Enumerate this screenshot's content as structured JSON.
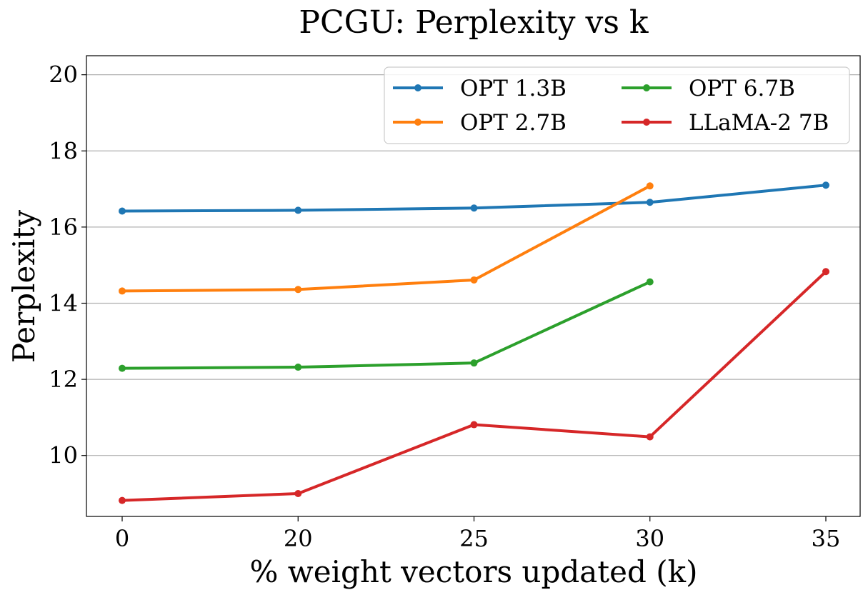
{
  "chart_data": {
    "type": "line",
    "title": "PCGU: Perplexity vs k",
    "xlabel": "% weight vectors updated (k)",
    "ylabel": "Perplexity",
    "categories": [
      "0",
      "20",
      "25",
      "30",
      "35"
    ],
    "ylim": [
      8.4,
      20.5
    ],
    "yticks": [
      10,
      12,
      14,
      16,
      18,
      20
    ],
    "grid": "horizontal",
    "legend_placement": "top-right",
    "legend_columns": 2,
    "series": [
      {
        "name": "OPT 1.3B",
        "color": "#1f77b4",
        "values": [
          16.42,
          16.44,
          16.5,
          16.65,
          17.1
        ]
      },
      {
        "name": "OPT 2.7B",
        "color": "#ff7f0e",
        "values": [
          14.32,
          14.36,
          14.61,
          17.08,
          null
        ]
      },
      {
        "name": "OPT 6.7B",
        "color": "#2ca02c",
        "values": [
          12.29,
          12.32,
          12.43,
          14.56,
          null
        ]
      },
      {
        "name": "LLaMA-2 7B",
        "color": "#d62728",
        "values": [
          8.82,
          9.0,
          10.81,
          10.49,
          14.83
        ]
      }
    ]
  }
}
